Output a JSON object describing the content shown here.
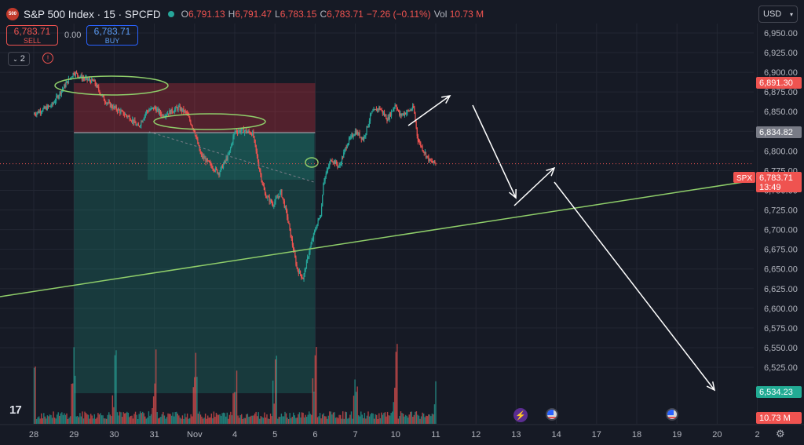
{
  "header": {
    "logo_text": "500",
    "symbol": "S&P 500 Index · 15 · SPCFD",
    "open_label": "O",
    "open": "6,791.13",
    "high_label": "H",
    "high": "6,791.47",
    "low_label": "L",
    "low": "6,783.15",
    "close_label": "C",
    "close": "6,783.71",
    "change": "−7.26 (−0.11%)",
    "vol_label": "Vol",
    "vol": "10.73 M"
  },
  "trade": {
    "sell_price": "6,783.71",
    "sell_label": "SELL",
    "spread": "0.00",
    "buy_price": "6,783.71",
    "buy_label": "BUY"
  },
  "indicators_count": "2",
  "alert_glyph": "!",
  "currency": "USD",
  "logo_mark": "17",
  "event_glyph": "⚡",
  "settings_glyph": "⚙",
  "colors": {
    "up": "#26a69a",
    "down": "#ef5350",
    "trend": "#8fce6a",
    "bg": "#161a25",
    "grid": "#232733"
  },
  "chart_data": {
    "type": "candlestick",
    "y_ticks": [
      6525,
      6550,
      6575,
      6600,
      6625,
      6650,
      6675,
      6700,
      6725,
      6750,
      6775,
      6800,
      6825,
      6850,
      6875,
      6900,
      6925,
      6950
    ],
    "y_tick_labels": [
      "6,525.00",
      "6,550.00",
      "6,575.00",
      "6,600.00",
      "6,625.00",
      "6,650.00",
      "6,675.00",
      "6,700.00",
      "6,725.00",
      "6,750.00",
      "6,775.00",
      "6,800.00",
      "6,825.00",
      "6,850.00",
      "6,875.00",
      "6,900.00",
      "6,925.00",
      "6,950.00"
    ],
    "x_labels": [
      "28",
      "29",
      "30",
      "31",
      "Nov",
      "4",
      "5",
      "6",
      "7",
      "10",
      "11",
      "12",
      "13",
      "14",
      "17",
      "18",
      "19",
      "20",
      "2"
    ],
    "price_path": [
      [
        0,
        6847
      ],
      [
        0.2,
        6852
      ],
      [
        0.45,
        6858
      ],
      [
        0.6,
        6870
      ],
      [
        0.8,
        6885
      ],
      [
        1.0,
        6900
      ],
      [
        1.2,
        6893
      ],
      [
        1.5,
        6888
      ],
      [
        1.75,
        6865
      ],
      [
        1.9,
        6858
      ],
      [
        2.0,
        6855
      ],
      [
        2.15,
        6850
      ],
      [
        2.4,
        6842
      ],
      [
        2.6,
        6830
      ],
      [
        2.8,
        6850
      ],
      [
        3.0,
        6855
      ],
      [
        3.2,
        6845
      ],
      [
        3.4,
        6850
      ],
      [
        3.6,
        6855
      ],
      [
        3.8,
        6848
      ],
      [
        4.0,
        6825
      ],
      [
        4.15,
        6795
      ],
      [
        4.4,
        6782
      ],
      [
        4.6,
        6772
      ],
      [
        4.85,
        6795
      ],
      [
        5.0,
        6825
      ],
      [
        5.25,
        6826
      ],
      [
        5.45,
        6822
      ],
      [
        5.6,
        6780
      ],
      [
        5.75,
        6745
      ],
      [
        5.95,
        6732
      ],
      [
        6.15,
        6748
      ],
      [
        6.3,
        6718
      ],
      [
        6.4,
        6690
      ],
      [
        6.55,
        6650
      ],
      [
        6.7,
        6638
      ],
      [
        6.85,
        6672
      ],
      [
        7.0,
        6700
      ],
      [
        7.15,
        6722
      ],
      [
        7.2,
        6760
      ],
      [
        7.4,
        6790
      ],
      [
        7.6,
        6780
      ],
      [
        7.8,
        6810
      ],
      [
        8.0,
        6825
      ],
      [
        8.2,
        6815
      ],
      [
        8.4,
        6848
      ],
      [
        8.6,
        6855
      ],
      [
        8.8,
        6840
      ],
      [
        9.0,
        6860
      ],
      [
        9.1,
        6845
      ],
      [
        9.3,
        6850
      ],
      [
        9.45,
        6855
      ],
      [
        9.55,
        6815
      ],
      [
        9.7,
        6800
      ],
      [
        9.85,
        6787
      ],
      [
        10.0,
        6784
      ]
    ],
    "volume_spikes": [
      1,
      2,
      3,
      4,
      5,
      6,
      7,
      8,
      9,
      10
    ],
    "last_price": "6,783.71",
    "last_price_symbol": "SPX",
    "countdown": "13:49",
    "labels": {
      "upper": "6,891.30",
      "mid": "6,834.82",
      "lower": "6,534.23",
      "volume": "10.73 M"
    }
  }
}
